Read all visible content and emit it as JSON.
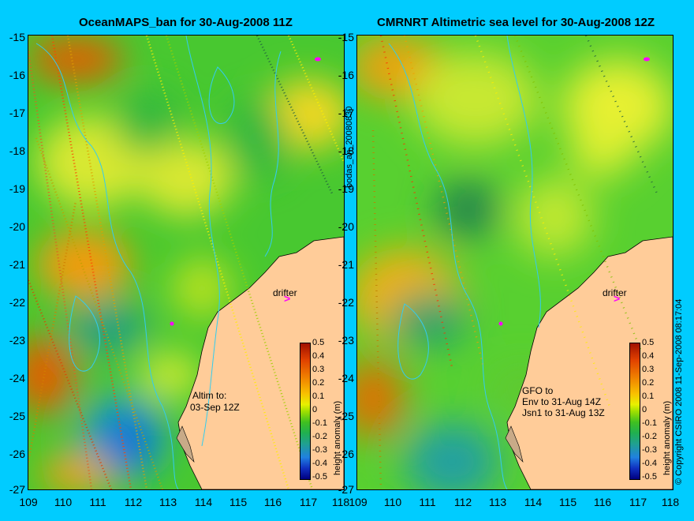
{
  "left_panel": {
    "title": "OceanMAPS_ban for 30-Aug-2008 11Z",
    "annotation_lines": [
      "Altim to:",
      "03-Sep 12Z"
    ]
  },
  "right_panel": {
    "title": "CMRNRT Altimetric sea level  for 30-Aug-2008 12Z",
    "annotation_lines": [
      "GFO to",
      "Env to 31-Aug 14Z",
      "Jsn1 to 31-Aug 13Z"
    ]
  },
  "drifter_label": "drifter",
  "side_label": "bodas_an_20080830",
  "copyright": "© Copyright CSIRO 2008   11-Sep-2008 08:17:04",
  "y_ticks": [
    "-15",
    "-16",
    "-17",
    "-18",
    "-19",
    "-20",
    "-21",
    "-22",
    "-23",
    "-24",
    "-25",
    "-26",
    "-27"
  ],
  "x_ticks": [
    "109",
    "110",
    "111",
    "112",
    "113",
    "114",
    "115",
    "116",
    "117",
    "118"
  ],
  "colorbar": {
    "label": "height anomaly (m)",
    "ticks": [
      "0.5",
      "0.4",
      "0.3",
      "0.2",
      "0.1",
      "0",
      "-0.1",
      "-0.2",
      "-0.3",
      "-0.4",
      "-0.5"
    ],
    "range": [
      -0.5,
      0.5
    ]
  },
  "colors": {
    "background": "#00ccff",
    "land": "#ffcc99",
    "marker": "#ff00ff",
    "contour": "#33ccee"
  }
}
